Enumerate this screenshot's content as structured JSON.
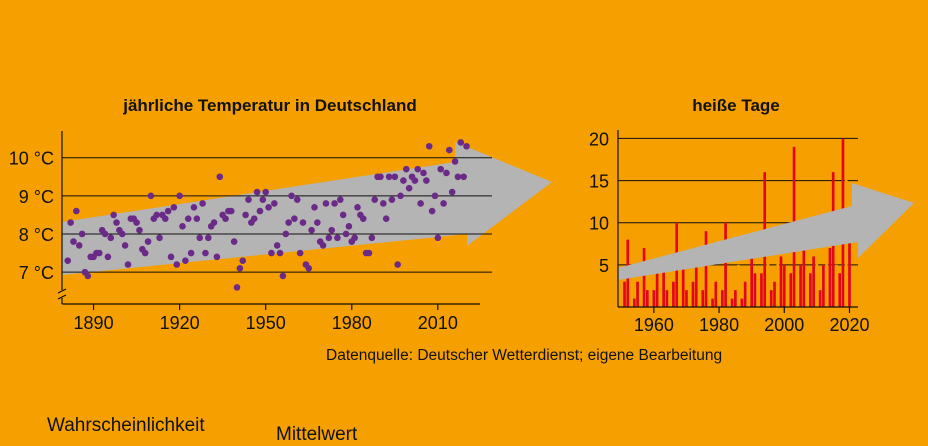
{
  "source": "Datenquelle: Deutscher Wetterdienst; eigene Bearbeitung",
  "bottom_labels": [
    "Wahrscheinlichkeit",
    "Mittelwert"
  ],
  "colors": {
    "background": "#F5A000",
    "arrow": "#B4B4B4",
    "scatter_dots": "#6B2A88",
    "bars_primary": "#E3061B",
    "bars_secondary": "#F5A000"
  },
  "chart_data": [
    {
      "type": "scatter",
      "title": "jährliche Temperatur in Deutschland",
      "xlabel": "",
      "ylabel": "",
      "ylim": [
        6.4,
        10.7
      ],
      "xlim": [
        1879,
        2024
      ],
      "yticks": [
        7,
        8,
        9,
        10
      ],
      "ytick_labels": [
        "7 °C",
        "8 °C",
        "9 °C",
        "10 °C"
      ],
      "xticks": [
        1890,
        1920,
        1950,
        1980,
        2010
      ],
      "xtick_labels": [
        "1890",
        "1920",
        "1950",
        "1980",
        "2010"
      ],
      "grid": "horizontal",
      "series": [
        {
          "x": [
            1881,
            1882,
            1883,
            1884,
            1885,
            1886,
            1887,
            1888,
            1889,
            1890,
            1891,
            1892,
            1893,
            1894,
            1895,
            1896,
            1897,
            1898,
            1899,
            1900,
            1901,
            1902,
            1903,
            1904,
            1905,
            1906,
            1907,
            1908,
            1909,
            1910,
            1911,
            1912,
            1913,
            1914,
            1915,
            1916,
            1917,
            1918,
            1919,
            1920,
            1921,
            1922,
            1923,
            1924,
            1925,
            1926,
            1927,
            1928,
            1929,
            1930,
            1931,
            1932,
            1933,
            1934,
            1935,
            1936,
            1937,
            1938,
            1939,
            1940,
            1941,
            1942,
            1943,
            1944,
            1945,
            1946,
            1947,
            1948,
            1949,
            1950,
            1951,
            1952,
            1953,
            1954,
            1955,
            1956,
            1957,
            1958,
            1959,
            1960,
            1961,
            1962,
            1963,
            1964,
            1965,
            1966,
            1967,
            1968,
            1969,
            1970,
            1971,
            1972,
            1973,
            1974,
            1975,
            1976,
            1977,
            1978,
            1979,
            1980,
            1981,
            1982,
            1983,
            1984,
            1985,
            1986,
            1987,
            1988,
            1989,
            1990,
            1991,
            1992,
            1993,
            1994,
            1995,
            1996,
            1997,
            1998,
            1999,
            2000,
            2001,
            2002,
            2003,
            2004,
            2005,
            2006,
            2007,
            2008,
            2009,
            2010,
            2011,
            2012,
            2013,
            2014,
            2015,
            2016,
            2017,
            2018,
            2019,
            2020
          ],
          "y": [
            7.3,
            8.3,
            7.8,
            8.6,
            7.7,
            8.0,
            7.0,
            6.9,
            7.4,
            7.4,
            7.5,
            7.5,
            8.1,
            8.0,
            7.4,
            7.9,
            8.5,
            8.3,
            8.1,
            8.0,
            7.7,
            7.2,
            8.4,
            8.4,
            8.3,
            8.1,
            7.6,
            7.5,
            7.8,
            9.0,
            8.4,
            8.5,
            7.9,
            8.5,
            8.4,
            8.6,
            7.4,
            8.7,
            7.2,
            9.0,
            8.2,
            7.3,
            8.4,
            7.5,
            8.7,
            8.4,
            7.9,
            8.8,
            7.5,
            7.9,
            8.2,
            8.3,
            7.4,
            9.5,
            8.5,
            8.4,
            8.6,
            8.6,
            7.8,
            6.6,
            7.1,
            7.3,
            8.5,
            8.9,
            8.3,
            8.4,
            9.1,
            8.6,
            8.9,
            9.1,
            8.7,
            7.5,
            8.8,
            7.7,
            7.5,
            6.9,
            8.0,
            8.3,
            9.0,
            8.4,
            8.9,
            7.5,
            8.3,
            7.2,
            7.1,
            8.1,
            8.7,
            8.3,
            7.8,
            7.7,
            8.8,
            7.9,
            8.1,
            8.8,
            7.9,
            8.9,
            8.5,
            8.0,
            8.2,
            7.8,
            7.9,
            8.7,
            8.5,
            8.4,
            7.5,
            7.5,
            7.9,
            8.9,
            9.5,
            9.5,
            8.8,
            8.4,
            9.5,
            8.9,
            9.5,
            7.2,
            9.0,
            9.4,
            9.7,
            9.2,
            9.5,
            9.4,
            9.7,
            8.8,
            9.6,
            9.4,
            10.3,
            8.6,
            9.0,
            7.9,
            9.7,
            8.8,
            9.6,
            10.2,
            9.1,
            9.9,
            9.5,
            10.4,
            9.5,
            10.3
          ]
        }
      ]
    },
    {
      "type": "bar",
      "title": "heiße Tage",
      "xlabel": "",
      "ylabel": "",
      "ylim": [
        0,
        21
      ],
      "yticks": [
        5,
        10,
        15,
        20
      ],
      "xticks": [
        1960,
        1980,
        2000,
        2020
      ],
      "grid": "horizontal",
      "categories": [
        1951,
        1952,
        1953,
        1954,
        1955,
        1956,
        1957,
        1958,
        1959,
        1960,
        1961,
        1962,
        1963,
        1964,
        1965,
        1966,
        1967,
        1968,
        1969,
        1970,
        1971,
        1972,
        1973,
        1974,
        1975,
        1976,
        1977,
        1978,
        1979,
        1980,
        1981,
        1982,
        1983,
        1984,
        1985,
        1986,
        1987,
        1988,
        1989,
        1990,
        1991,
        1992,
        1993,
        1994,
        1995,
        1996,
        1997,
        1998,
        1999,
        2000,
        2001,
        2002,
        2003,
        2004,
        2005,
        2006,
        2007,
        2008,
        2009,
        2010,
        2011,
        2012,
        2013,
        2014,
        2015,
        2016,
        2017,
        2018,
        2019,
        2020
      ],
      "series": [
        {
          "values": [
            3,
            8,
            5,
            1,
            3,
            1,
            7,
            2,
            6,
            2,
            4,
            4,
            5,
            2,
            2,
            3,
            10,
            3,
            5,
            2,
            3,
            3,
            5,
            2,
            2,
            9,
            2,
            1,
            3,
            1,
            2,
            10,
            3,
            1,
            2,
            5,
            1,
            3,
            4,
            7,
            4,
            3,
            4,
            16,
            7,
            2,
            3,
            8,
            6,
            5,
            4,
            4,
            19,
            3,
            5,
            8,
            4,
            4,
            6,
            8,
            2,
            5,
            9,
            7,
            16,
            5,
            4,
            20,
            17,
            9
          ]
        }
      ]
    }
  ]
}
